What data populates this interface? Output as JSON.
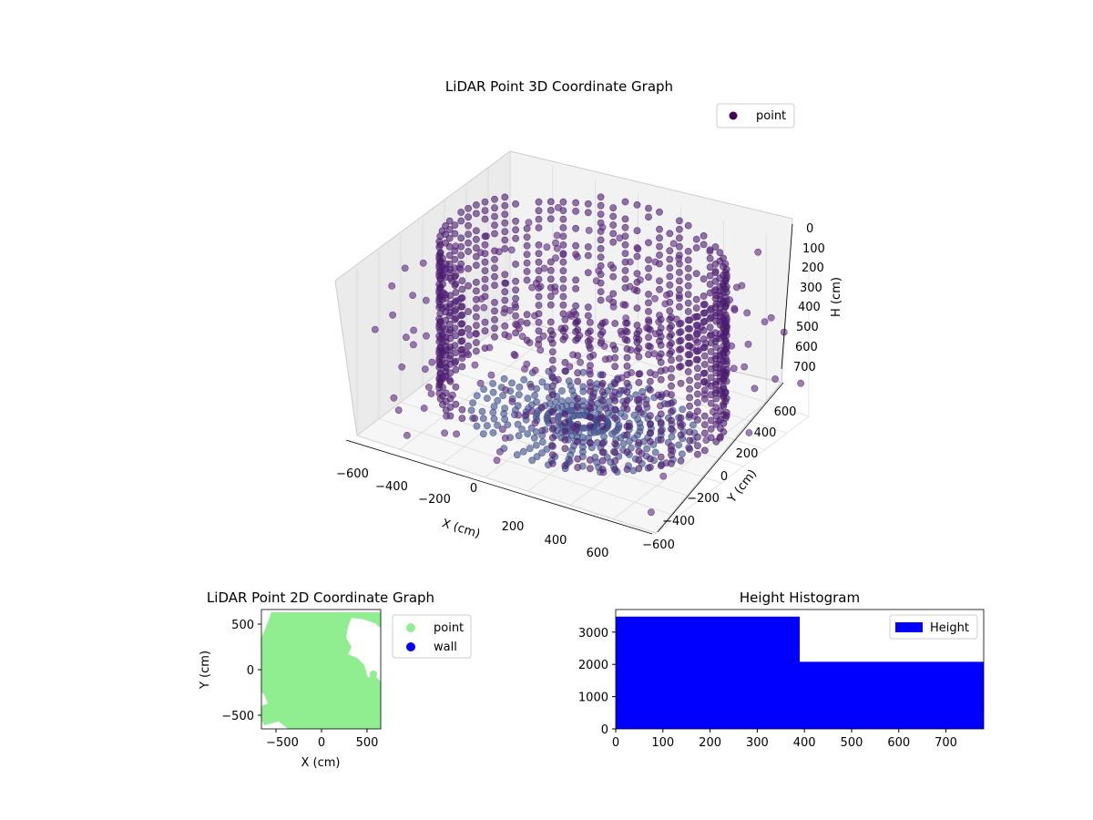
{
  "chart_data": [
    {
      "type": "scatter",
      "title": "LiDAR Point 3D Coordinate Graph",
      "xlabel": "X (cm)",
      "ylabel": "Y (cm)",
      "zlabel": "H (cm)",
      "xticks": [
        "−600",
        "−400",
        "−200",
        "0",
        "200",
        "400",
        "600"
      ],
      "yticks": [
        "−600",
        "−400",
        "−200",
        "0",
        "200",
        "400",
        "600"
      ],
      "zticks": [
        "0",
        "100",
        "200",
        "300",
        "400",
        "500",
        "600",
        "700"
      ],
      "xlim": [
        -700,
        700
      ],
      "ylim": [
        -700,
        700
      ],
      "zlim": [
        780,
        0
      ],
      "legend": {
        "label": "point",
        "placement": "top-right",
        "color": "#440154"
      },
      "colormap": "viridis",
      "grid": true,
      "series": [
        {
          "name": "point",
          "wall_radius": 600,
          "wall_height_range": [
            0,
            700
          ],
          "floor_radius": 500
        }
      ]
    },
    {
      "type": "scatter",
      "title": "LiDAR Point 2D Coordinate Graph",
      "xlabel": "X (cm)",
      "ylabel": "Y (cm)",
      "xticks": [
        "−500",
        "0",
        "500"
      ],
      "yticks": [
        "500",
        "0",
        "−500"
      ],
      "xlim": [
        -650,
        650
      ],
      "ylim": [
        -650,
        650
      ],
      "legend": {
        "placement": "outside-right",
        "entries": [
          {
            "label": "point",
            "color": "#90ee90"
          },
          {
            "label": "wall",
            "color": "#0000ff"
          }
        ]
      },
      "grid": false
    },
    {
      "type": "bar",
      "title": "Height Histogram",
      "xticks": [
        "0",
        "100",
        "200",
        "300",
        "400",
        "500",
        "600",
        "700"
      ],
      "yticks": [
        "0",
        "1000",
        "2000",
        "3000"
      ],
      "xlim": [
        0,
        780
      ],
      "ylim": [
        0,
        3700
      ],
      "bins": [
        {
          "x0": 0,
          "x1": 390,
          "count": 3480
        },
        {
          "x0": 390,
          "x1": 780,
          "count": 2080
        }
      ],
      "color": "#0000ff",
      "legend": {
        "label": "Height",
        "placement": "top-right"
      },
      "grid": false
    }
  ]
}
